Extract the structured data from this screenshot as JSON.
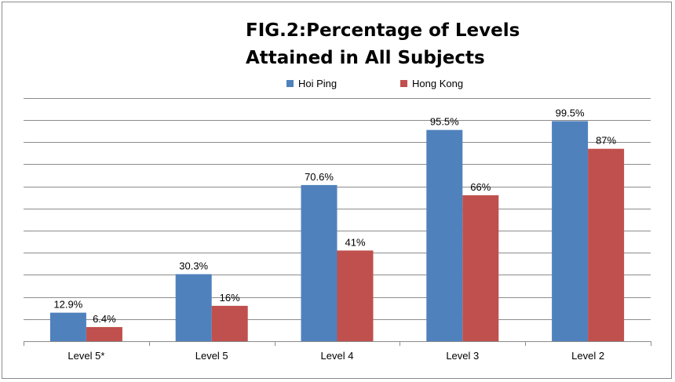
{
  "chart_data": {
    "type": "bar",
    "title_lines": [
      "FIG.2:Percentage of Levels",
      "Attained in All Subjects"
    ],
    "categories": [
      "Level 5*",
      "Level 5",
      "Level 4",
      "Level 3",
      "Level 2"
    ],
    "series": [
      {
        "name": "Hoi Ping",
        "color": "#4f81bd",
        "values": [
          12.9,
          30.3,
          70.6,
          95.5,
          99.5
        ],
        "labels": [
          "12.9%",
          "30.3%",
          "70.6%",
          "95.5%",
          "99.5%"
        ]
      },
      {
        "name": "Hong Kong",
        "color": "#c0504d",
        "values": [
          6.4,
          16,
          41,
          66,
          87
        ],
        "labels": [
          "6.4%",
          "16%",
          "41%",
          "66%",
          "87%"
        ]
      }
    ],
    "ylim": [
      0,
      110
    ],
    "y_gridlines": true,
    "legend_position": "top"
  }
}
